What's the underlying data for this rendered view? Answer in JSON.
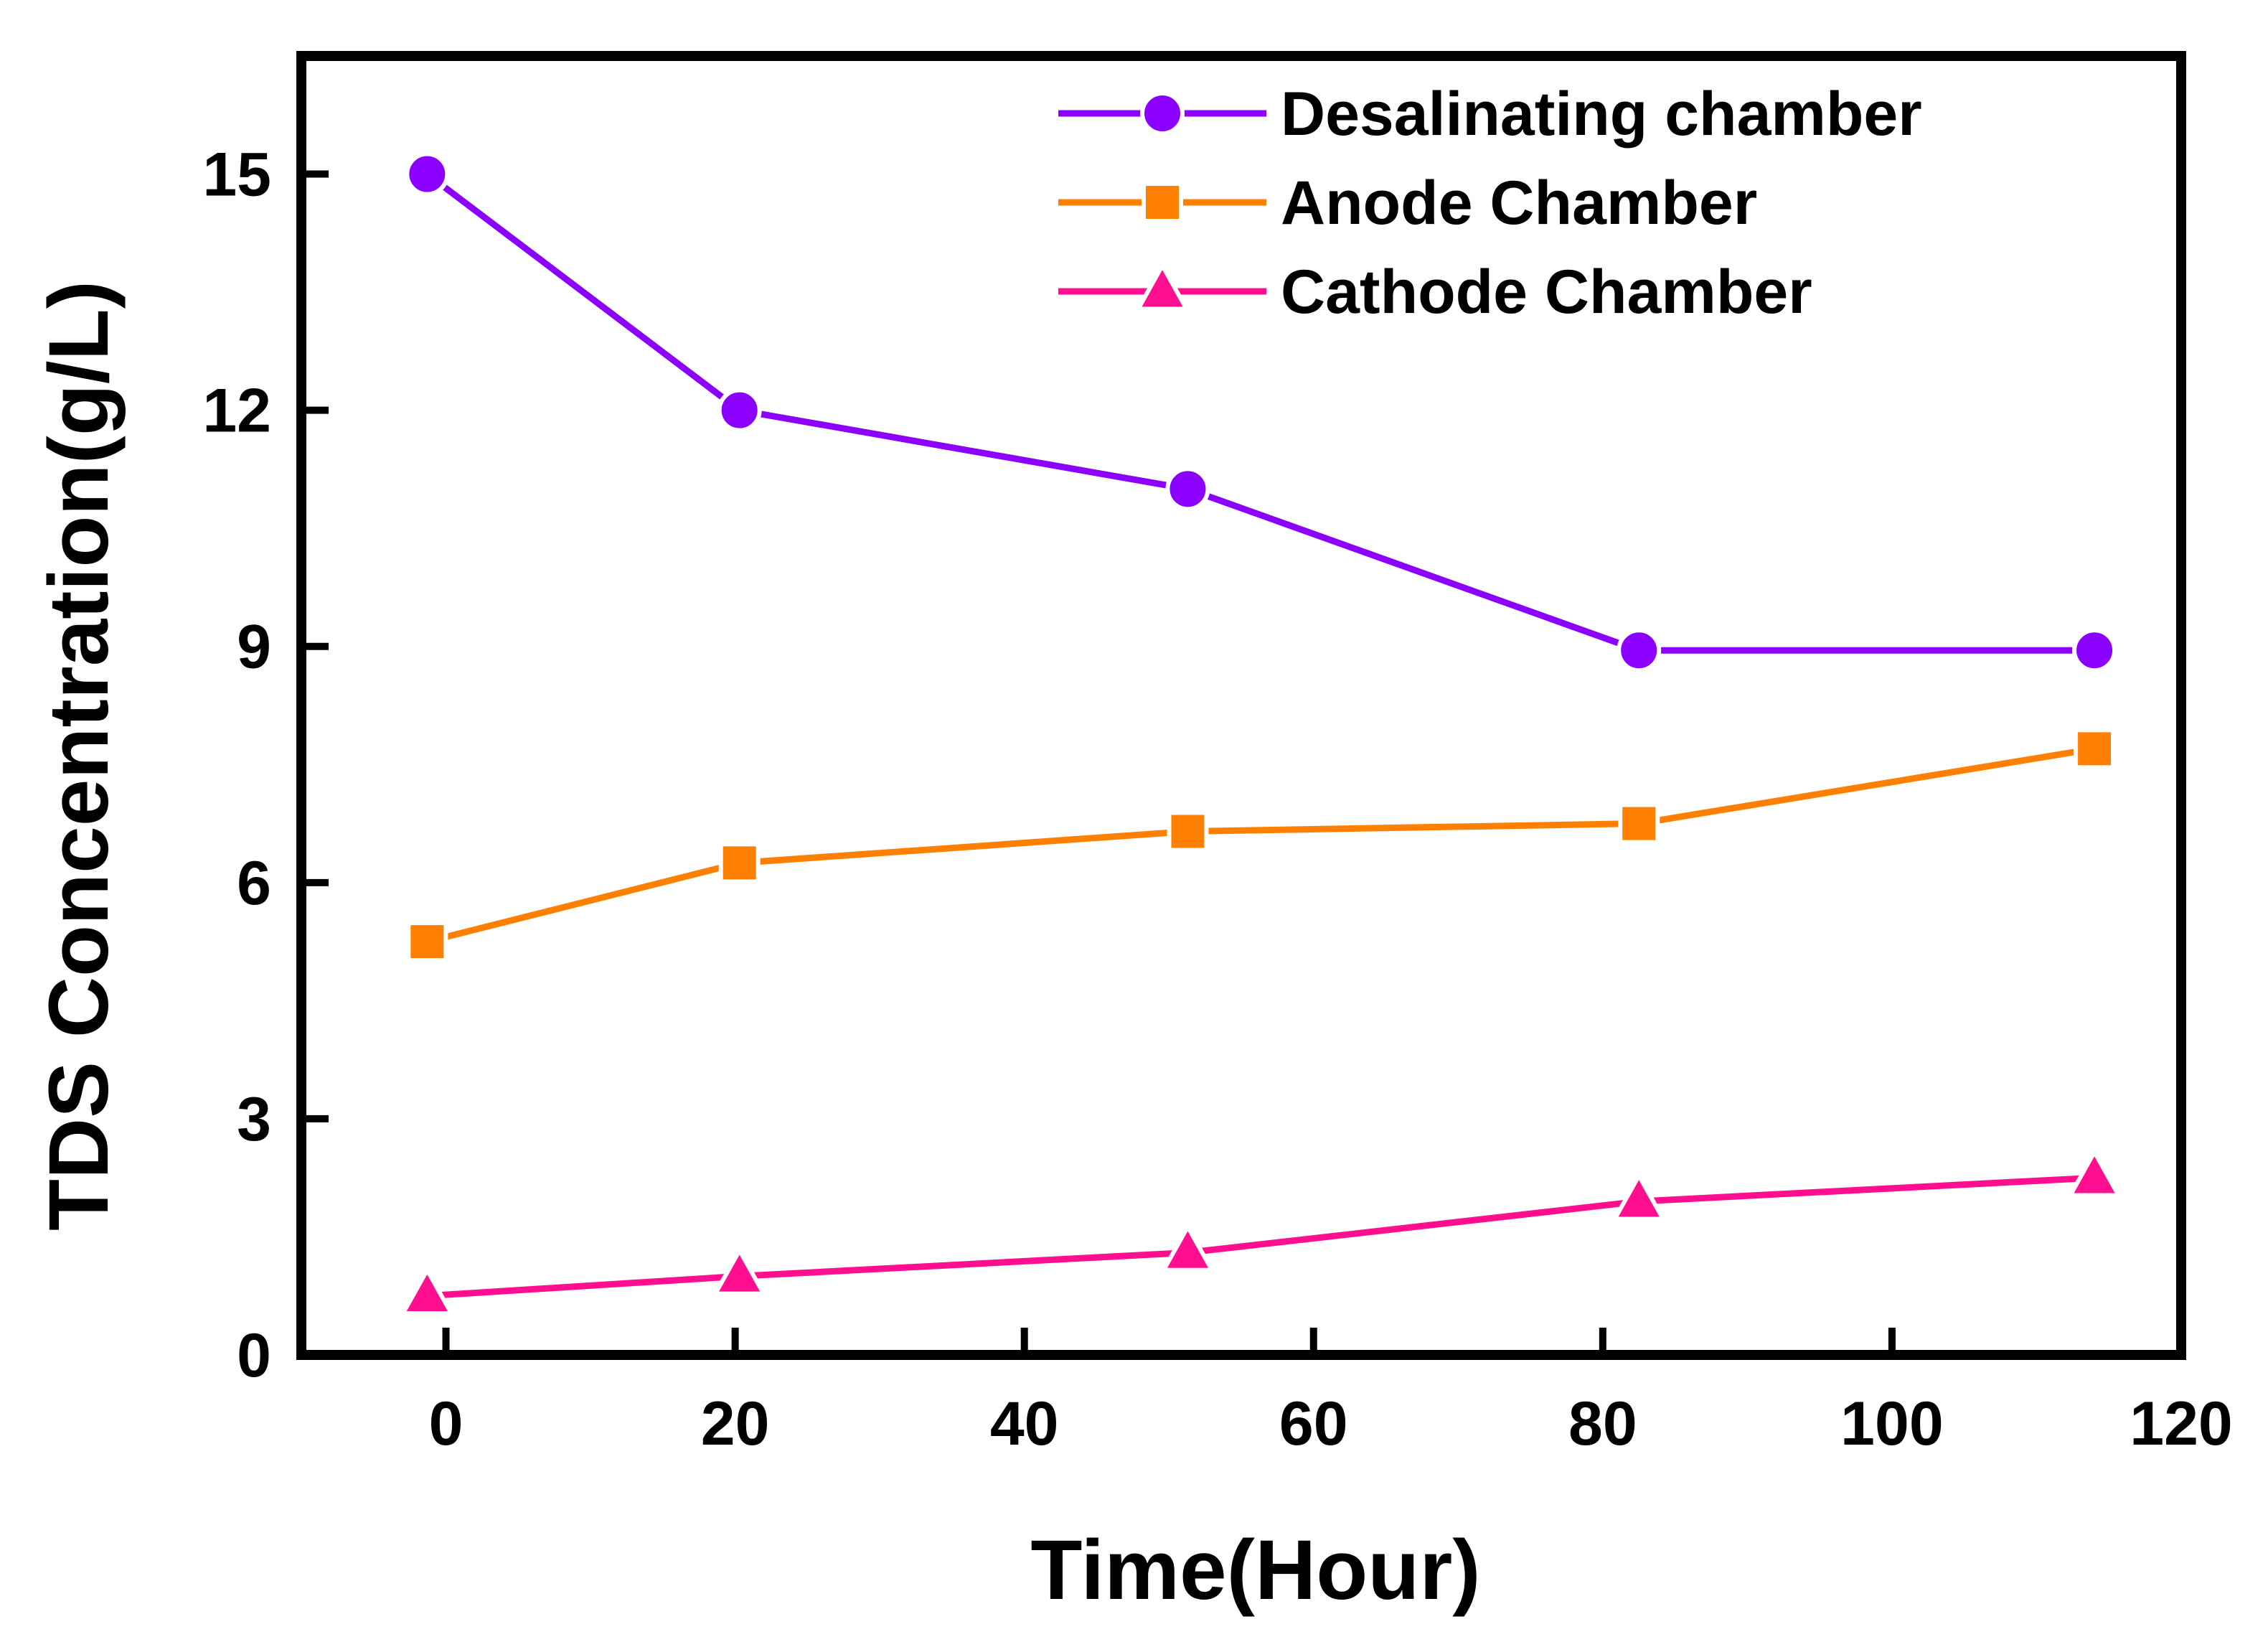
{
  "chart_data": {
    "type": "line",
    "title": "",
    "xlabel": "Time(Hour)",
    "ylabel": "TDS Concentration(g/L)",
    "xlim": [
      -10,
      120
    ],
    "ylim": [
      0,
      16.5
    ],
    "xticks": [
      0,
      20,
      40,
      60,
      80,
      100,
      120
    ],
    "yticks": [
      0,
      3,
      6,
      9,
      12,
      15
    ],
    "legend_position": "top-right",
    "series": [
      {
        "name": "Desalinating chamber",
        "color": "#8b00ff",
        "marker": "circle",
        "x": [
          -1.3,
          20.3,
          51.3,
          82.5,
          114.0
        ],
        "y": [
          15.0,
          12.0,
          11.0,
          8.95,
          8.95
        ]
      },
      {
        "name": "Anode Chamber",
        "color": "#ff8000",
        "marker": "square",
        "x": [
          -1.3,
          20.3,
          51.3,
          82.5,
          114.0
        ],
        "y": [
          5.25,
          6.25,
          6.65,
          6.75,
          7.7
        ]
      },
      {
        "name": "Cathode Chamber",
        "color": "#ff0f8f",
        "marker": "triangle",
        "x": [
          -1.3,
          20.3,
          51.3,
          82.5,
          114.0
        ],
        "y": [
          0.75,
          1.0,
          1.3,
          1.95,
          2.25
        ]
      }
    ]
  }
}
